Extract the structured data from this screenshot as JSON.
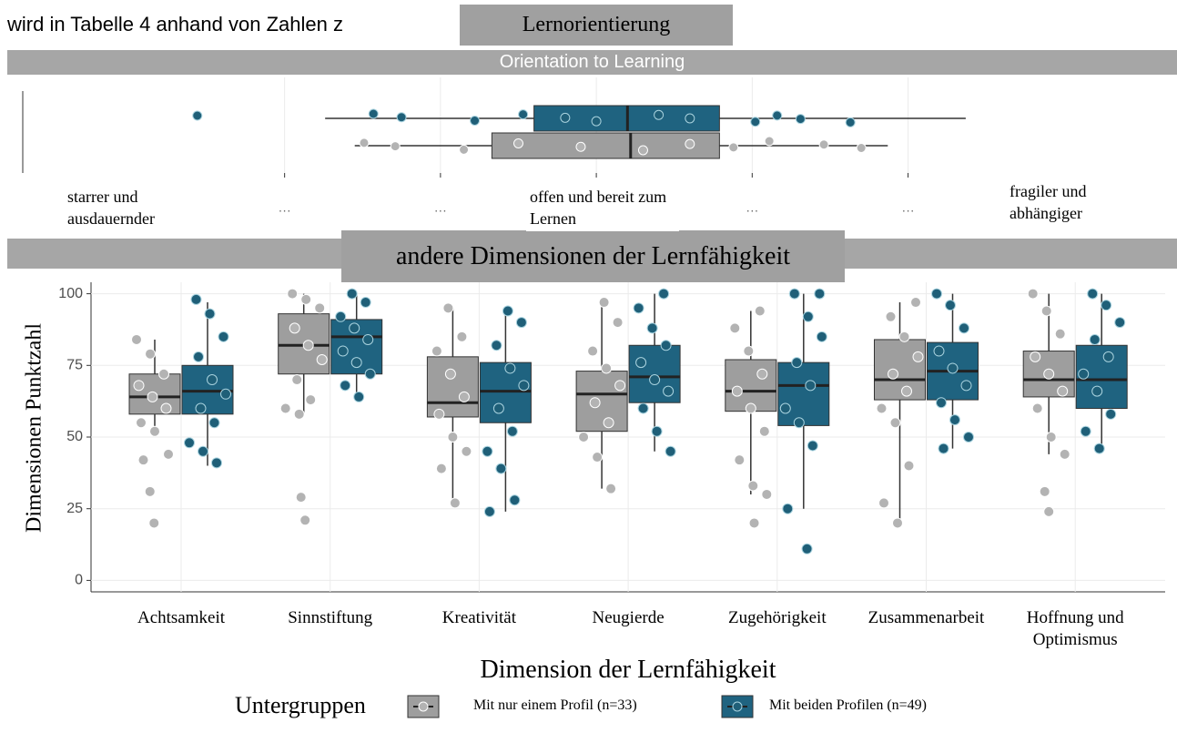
{
  "page_text": "wird in Tabelle 4 anhand von Zahlen z",
  "chart_data": [
    {
      "type": "boxplot_h",
      "title": "Lernorientierung",
      "strip": "Orientation to Learning",
      "annotations": [
        "starrer und ausdauernder",
        "offen und bereit zum Lernen",
        "fragiler und abhängiger"
      ],
      "xlim": [
        -0.68,
        5.54
      ],
      "xticks": [
        {
          "value": 1,
          "label": "···"
        },
        {
          "value": 2,
          "label": "···"
        },
        {
          "value": 3,
          "label": "···"
        },
        {
          "value": 4,
          "label": "···"
        },
        {
          "value": 5,
          "label": "···"
        }
      ],
      "series": [
        {
          "color": "#1f6380",
          "min": 1.26,
          "q1": 2.6,
          "median": 3.2,
          "q3": 3.79,
          "max": 5.37,
          "outliers": [
            0.44
          ],
          "points": [
            1.57,
            1.75,
            2.22,
            2.53,
            2.8,
            3.0,
            3.4,
            3.6,
            4.02,
            4.16,
            4.31,
            4.63
          ]
        },
        {
          "color": "#9e9e9e",
          "min": 1.45,
          "q1": 2.33,
          "median": 3.22,
          "q3": 3.79,
          "max": 4.87,
          "outliers": [],
          "points": [
            1.51,
            1.71,
            2.15,
            2.5,
            2.9,
            3.3,
            3.6,
            3.88,
            4.11,
            4.46,
            4.7
          ]
        }
      ]
    },
    {
      "type": "boxplot",
      "title": "andere Dimensionen der Lernfähigkeit",
      "y_label": "Dimensionen Punktzahl",
      "x_label": "Dimension der Lernfähigkeit",
      "legend_title": "Untergruppen",
      "categories": [
        "Achtsamkeit",
        "Sinnstiftung",
        "Kreativität",
        "Neugierde",
        "Zugehörigkeit",
        "Zusammenarbeit",
        "Hoffnung und Optimismus"
      ],
      "ylim": [
        -4,
        104
      ],
      "yticks": [
        0,
        25,
        50,
        75,
        100
      ],
      "grid": true,
      "series": [
        {
          "name": "Mit nur einem Profil (n=33)",
          "color": "#9e9e9e",
          "min": [
            52,
            58,
            27,
            32,
            30,
            20,
            44
          ],
          "q1": [
            58,
            72,
            57,
            52,
            59,
            63,
            64
          ],
          "median": [
            64,
            82,
            62,
            65,
            66,
            70,
            70
          ],
          "q3": [
            72,
            93,
            78,
            73,
            77,
            84,
            80
          ],
          "max": [
            84,
            100,
            95,
            97,
            94,
            97,
            100
          ],
          "outliers": [
            [
              31,
              20
            ],
            [
              29,
              21
            ],
            [],
            [],
            [
              20
            ],
            [],
            [
              31,
              24
            ]
          ],
          "points": [
            [
              84,
              79,
              72,
              68,
              64,
              60,
              55,
              52,
              44,
              42
            ],
            [
              100,
              98,
              95,
              88,
              82,
              77,
              70,
              63,
              60,
              58
            ],
            [
              95,
              85,
              80,
              72,
              64,
              58,
              50,
              45,
              39,
              27
            ],
            [
              97,
              90,
              80,
              74,
              68,
              62,
              55,
              50,
              43,
              32
            ],
            [
              94,
              88,
              80,
              72,
              66,
              60,
              52,
              42,
              33,
              30
            ],
            [
              97,
              92,
              85,
              78,
              72,
              66,
              60,
              55,
              40,
              27,
              20
            ],
            [
              100,
              94,
              86,
              78,
              72,
              66,
              60,
              50,
              44
            ]
          ]
        },
        {
          "name": "Mit beiden Profilen (n=49)",
          "color": "#1f6380",
          "min": [
            40,
            63,
            24,
            45,
            25,
            46,
            46
          ],
          "q1": [
            58,
            72,
            55,
            62,
            54,
            63,
            60
          ],
          "median": [
            66,
            85,
            66,
            71,
            68,
            73,
            70
          ],
          "q3": [
            75,
            91,
            76,
            82,
            76,
            83,
            82
          ],
          "max": [
            97,
            100,
            94,
            100,
            100,
            100,
            100
          ],
          "outliers": [
            [],
            [],
            [],
            [],
            [
              11
            ],
            [],
            []
          ],
          "points": [
            [
              98,
              93,
              85,
              78,
              70,
              65,
              60,
              55,
              48,
              45,
              41
            ],
            [
              100,
              97,
              92,
              88,
              84,
              80,
              76,
              72,
              68,
              64
            ],
            [
              94,
              90,
              82,
              74,
              68,
              60,
              52,
              45,
              39,
              28,
              24
            ],
            [
              100,
              95,
              88,
              82,
              76,
              70,
              66,
              60,
              52,
              45
            ],
            [
              100,
              100,
              92,
              85,
              76,
              68,
              60,
              55,
              47,
              25
            ],
            [
              100,
              96,
              88,
              80,
              74,
              68,
              62,
              56,
              50,
              46
            ],
            [
              100,
              96,
              90,
              84,
              78,
              72,
              66,
              58,
              52,
              46
            ]
          ]
        }
      ]
    }
  ]
}
